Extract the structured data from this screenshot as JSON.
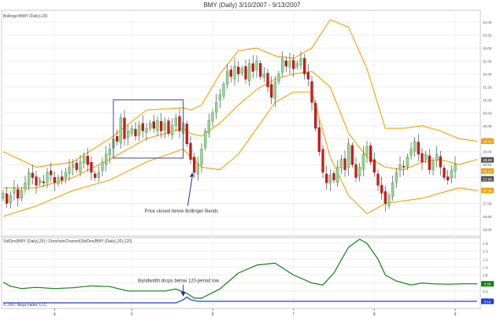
{
  "title": "BMY (Daily)  3/10/2007 - 9/13/2007",
  "top_panel": {
    "label": "Bollinger(BMY (Daily),20)",
    "y_ticks": [
      "34.00",
      "33.50",
      "33.00",
      "32.50",
      "32.00",
      "31.50",
      "31.00",
      "30.50",
      "30.00",
      "29.50",
      "29.00",
      "28.50",
      "28.00",
      "27.50",
      "27.00",
      "26.50",
      "26.00"
    ],
    "last_value_tags": [
      "29.43",
      "28.68",
      "28.23",
      "27.96",
      "27.48"
    ],
    "annotation": "Price closed below Bollinger Bands"
  },
  "bottom_panel": {
    "label": "StdDev(BMY (Daily),20) / DonchianChannel(StdDev(BMY (Daily),20),120)",
    "y_ticks": [
      "1.6",
      "1.4",
      "1.2",
      "1.0",
      "0.8",
      "0.6",
      "0.4",
      "0.2"
    ],
    "last_value_tags": [
      "0.58",
      "0.14"
    ],
    "annotation": "Bandwidth drops below 120-period low",
    "copyright": "© 2007 NinjaTrader, LLC"
  },
  "x_ticks": [
    "4",
    "5",
    "6",
    "7",
    "8",
    "9"
  ],
  "colors": {
    "up": "#90d890",
    "down": "#d81818",
    "band": "#f0a000",
    "bandwidth": "#108010",
    "low_line": "#2040d0",
    "box": "#4040a0"
  },
  "chart_data": [
    {
      "type": "candlestick",
      "title": "BMY (Daily)  3/10/2007 - 9/13/2007",
      "x": {
        "start": 1,
        "end": 130,
        "tick_labels": [
          "4",
          "5",
          "6",
          "7",
          "8",
          "9"
        ],
        "tick_positions": [
          15,
          36,
          58,
          80,
          102,
          124
        ]
      },
      "ylim": [
        25.8,
        34.4
      ],
      "y_tick_values": [
        34,
        33.5,
        33,
        32.5,
        32,
        31.5,
        31,
        30.5,
        30,
        29.5,
        29,
        28.5,
        28,
        27.5,
        27,
        26.5,
        26
      ],
      "closes": [
        27.4,
        27.0,
        27.3,
        27.6,
        27.2,
        27.5,
        27.8,
        28.2,
        28.0,
        27.7,
        27.9,
        27.8,
        28.2,
        28.1,
        27.8,
        28.0,
        27.9,
        28.2,
        28.4,
        28.5,
        28.3,
        28.6,
        28.8,
        28.5,
        28.2,
        28.0,
        28.2,
        28.6,
        28.9,
        29.1,
        29.5,
        29.4,
        30.3,
        29.5,
        29.8,
        29.9,
        29.6,
        30.0,
        29.8,
        29.9,
        30.1,
        29.9,
        30.2,
        29.8,
        30.1,
        29.7,
        30.0,
        30.3,
        29.8,
        30.1,
        29.3,
        28.7,
        28.2,
        28.5,
        29.1,
        29.8,
        30.2,
        30.5,
        30.9,
        31.2,
        31.6,
        32.1,
        31.9,
        32.3,
        32.0,
        32.2,
        31.8,
        32.4,
        32.1,
        32.5,
        31.9,
        32.0,
        31.5,
        31.1,
        31.7,
        32.0,
        32.6,
        32.3,
        32.5,
        32.2,
        32.4,
        32.6,
        32.0,
        31.8,
        30.9,
        29.9,
        29.0,
        28.2,
        27.8,
        28.1,
        27.9,
        28.4,
        28.7,
        28.3,
        29.3,
        28.5,
        28.0,
        28.4,
        28.9,
        29.2,
        28.6,
        28.2,
        27.7,
        27.4,
        27.0,
        27.3,
        27.8,
        28.2,
        28.5,
        28.4,
        28.8,
        29.1,
        29.4,
        28.9,
        28.6,
        28.9,
        28.3,
        28.6,
        28.9,
        28.4,
        28.0,
        27.9,
        28.3,
        28.5
      ],
      "bands": {
        "x": [
          1,
          10,
          20,
          30,
          40,
          50,
          52,
          55,
          60,
          65,
          70,
          75,
          80,
          85,
          90,
          95,
          100,
          105,
          110,
          115,
          120,
          125,
          130
        ],
        "upper": [
          29.0,
          28.4,
          28.6,
          29.5,
          30.6,
          30.7,
          30.6,
          30.8,
          32.0,
          32.9,
          33.0,
          32.7,
          32.6,
          33.0,
          34.1,
          33.8,
          32.2,
          29.9,
          29.9,
          30.0,
          29.8,
          29.5,
          29.4
        ],
        "middle": [
          27.6,
          27.6,
          28.0,
          28.7,
          29.5,
          29.9,
          29.7,
          29.6,
          30.1,
          30.8,
          31.4,
          31.8,
          32.0,
          32.1,
          31.5,
          29.7,
          28.8,
          28.4,
          28.3,
          28.6,
          28.7,
          28.5,
          28.7
        ],
        "lower": [
          26.5,
          26.9,
          27.5,
          27.9,
          28.6,
          29.1,
          28.8,
          28.4,
          28.3,
          28.9,
          29.9,
          30.9,
          31.3,
          31.3,
          28.8,
          27.3,
          26.6,
          27.0,
          27.1,
          27.2,
          27.4,
          27.6,
          27.5
        ]
      }
    },
    {
      "type": "line",
      "title": "StdDev(BMY (Daily),20) / DonchianChannel(StdDev(BMY (Daily),20),120)",
      "ylim": [
        0.0,
        1.7
      ],
      "y_tick_values": [
        1.6,
        1.4,
        1.2,
        1.0,
        0.8,
        0.6,
        0.4,
        0.2
      ],
      "series": [
        {
          "name": "StdDev",
          "x": [
            1,
            3,
            6,
            10,
            15,
            20,
            25,
            30,
            35,
            40,
            45,
            48,
            51,
            53,
            55,
            60,
            65,
            70,
            75,
            80,
            85,
            88,
            91,
            95,
            98,
            100,
            103,
            105,
            108,
            112,
            115,
            118,
            122,
            126,
            130
          ],
          "values": [
            0.62,
            0.52,
            0.46,
            0.49,
            0.46,
            0.48,
            0.53,
            0.51,
            0.4,
            0.4,
            0.4,
            0.45,
            0.34,
            0.22,
            0.22,
            0.45,
            0.85,
            1.05,
            1.1,
            0.8,
            0.6,
            0.55,
            0.85,
            1.5,
            1.7,
            1.6,
            1.2,
            0.8,
            0.65,
            0.55,
            0.6,
            0.58,
            0.57,
            0.58,
            0.58
          ]
        },
        {
          "name": "Donchian low",
          "x": [
            1,
            48,
            50,
            51,
            52,
            54,
            56,
            130
          ],
          "values": [
            0.1,
            0.1,
            0.18,
            0.25,
            0.18,
            0.14,
            0.14,
            0.14
          ]
        }
      ]
    }
  ]
}
